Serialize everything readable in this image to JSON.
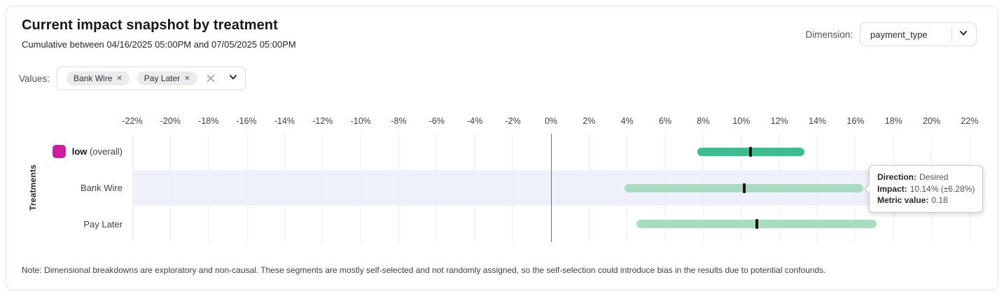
{
  "header": {
    "title": "Current impact snapshot by treatment",
    "subtitle": "Cumulative between 04/16/2025 05:00PM and 07/05/2025 05:00PM"
  },
  "dimension": {
    "label": "Dimension:",
    "selected": "payment_type"
  },
  "filters": {
    "label": "Values:",
    "chips": [
      {
        "label": "Bank Wire",
        "remove_icon": "✕"
      },
      {
        "label": "Pay Later",
        "remove_icon": "✕"
      }
    ]
  },
  "chart_data": {
    "type": "bar",
    "subtype": "horizontal-interval-error-bars",
    "title": "",
    "xlabel": "",
    "ylabel": "Treatments",
    "x_axis": {
      "min": -22,
      "max": 22,
      "step": 2,
      "unit": "%"
    },
    "grid": true,
    "zero_line": true,
    "rows": [
      {
        "label": "low",
        "label_suffix": " (overall)",
        "legend_color": "#cf1da1",
        "impact_pct": 10.5,
        "margin_pct": 2.8,
        "bar_color": "#3cbd8f",
        "highlighted": false
      },
      {
        "label": "Bank Wire",
        "label_suffix": "",
        "legend_color": null,
        "impact_pct": 10.14,
        "margin_pct": 6.28,
        "bar_color": "#a8dbc0",
        "highlighted": true
      },
      {
        "label": "Pay Later",
        "label_suffix": "",
        "legend_color": null,
        "impact_pct": 10.8,
        "margin_pct": 6.3,
        "bar_color": "#a8dbc0",
        "highlighted": false
      }
    ],
    "colors": {
      "row_highlight": "#eef0fb",
      "gridline": "#ededee",
      "zero_line": "#707070",
      "center_tick": "#161616"
    }
  },
  "tooltip": {
    "rows": [
      {
        "label": "Direction:",
        "value": "Desired"
      },
      {
        "label": "Impact:",
        "value": "10.14% (±6.28%)"
      },
      {
        "label": "Metric value:",
        "value": "0.18"
      }
    ]
  },
  "note": "Note: Dimensional breakdowns are exploratory and non-causal. These segments are mostly self-selected and not randomly assigned, so the self-selection could introduce bias in the results due to potential confounds."
}
